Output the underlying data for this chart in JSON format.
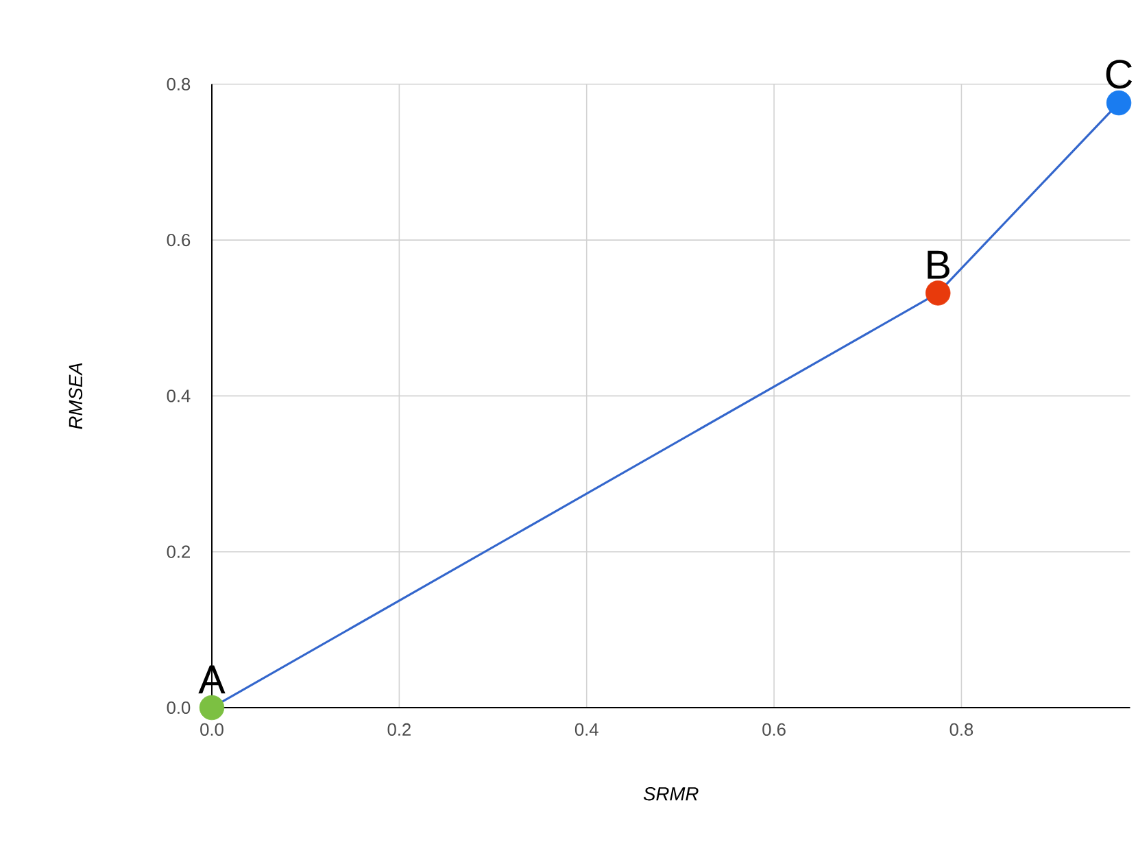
{
  "chart_data": {
    "type": "line",
    "xlabel": "SRMR",
    "ylabel": "RMSEA",
    "x": [
      0,
      0.775,
      0.968
    ],
    "series": [
      {
        "color": "#3366cc",
        "values": [
          0,
          0.532,
          0.776
        ],
        "colors": [
          "#7cc042",
          "#e83a0c",
          "#1a7cf0"
        ]
      }
    ],
    "xlim": [
      0,
      0.98
    ],
    "ylim": [
      0,
      0.8
    ],
    "xticks": [
      {
        "value": 0,
        "label": "0.0"
      },
      0.2,
      0.4,
      0.6,
      0.8
    ],
    "yticks": [
      {
        "value": 0,
        "label": "0.0"
      },
      0.2,
      0.4,
      0.6,
      0.8
    ],
    "grid": true,
    "marker": "circle",
    "line_style": "solid",
    "annotations": [
      {
        "text": "A",
        "x": 0,
        "y": 0
      },
      {
        "text": "B",
        "x": 0.775,
        "y": 0.532
      },
      {
        "text": "C",
        "x": 0.968,
        "y": 0.776
      }
    ]
  }
}
